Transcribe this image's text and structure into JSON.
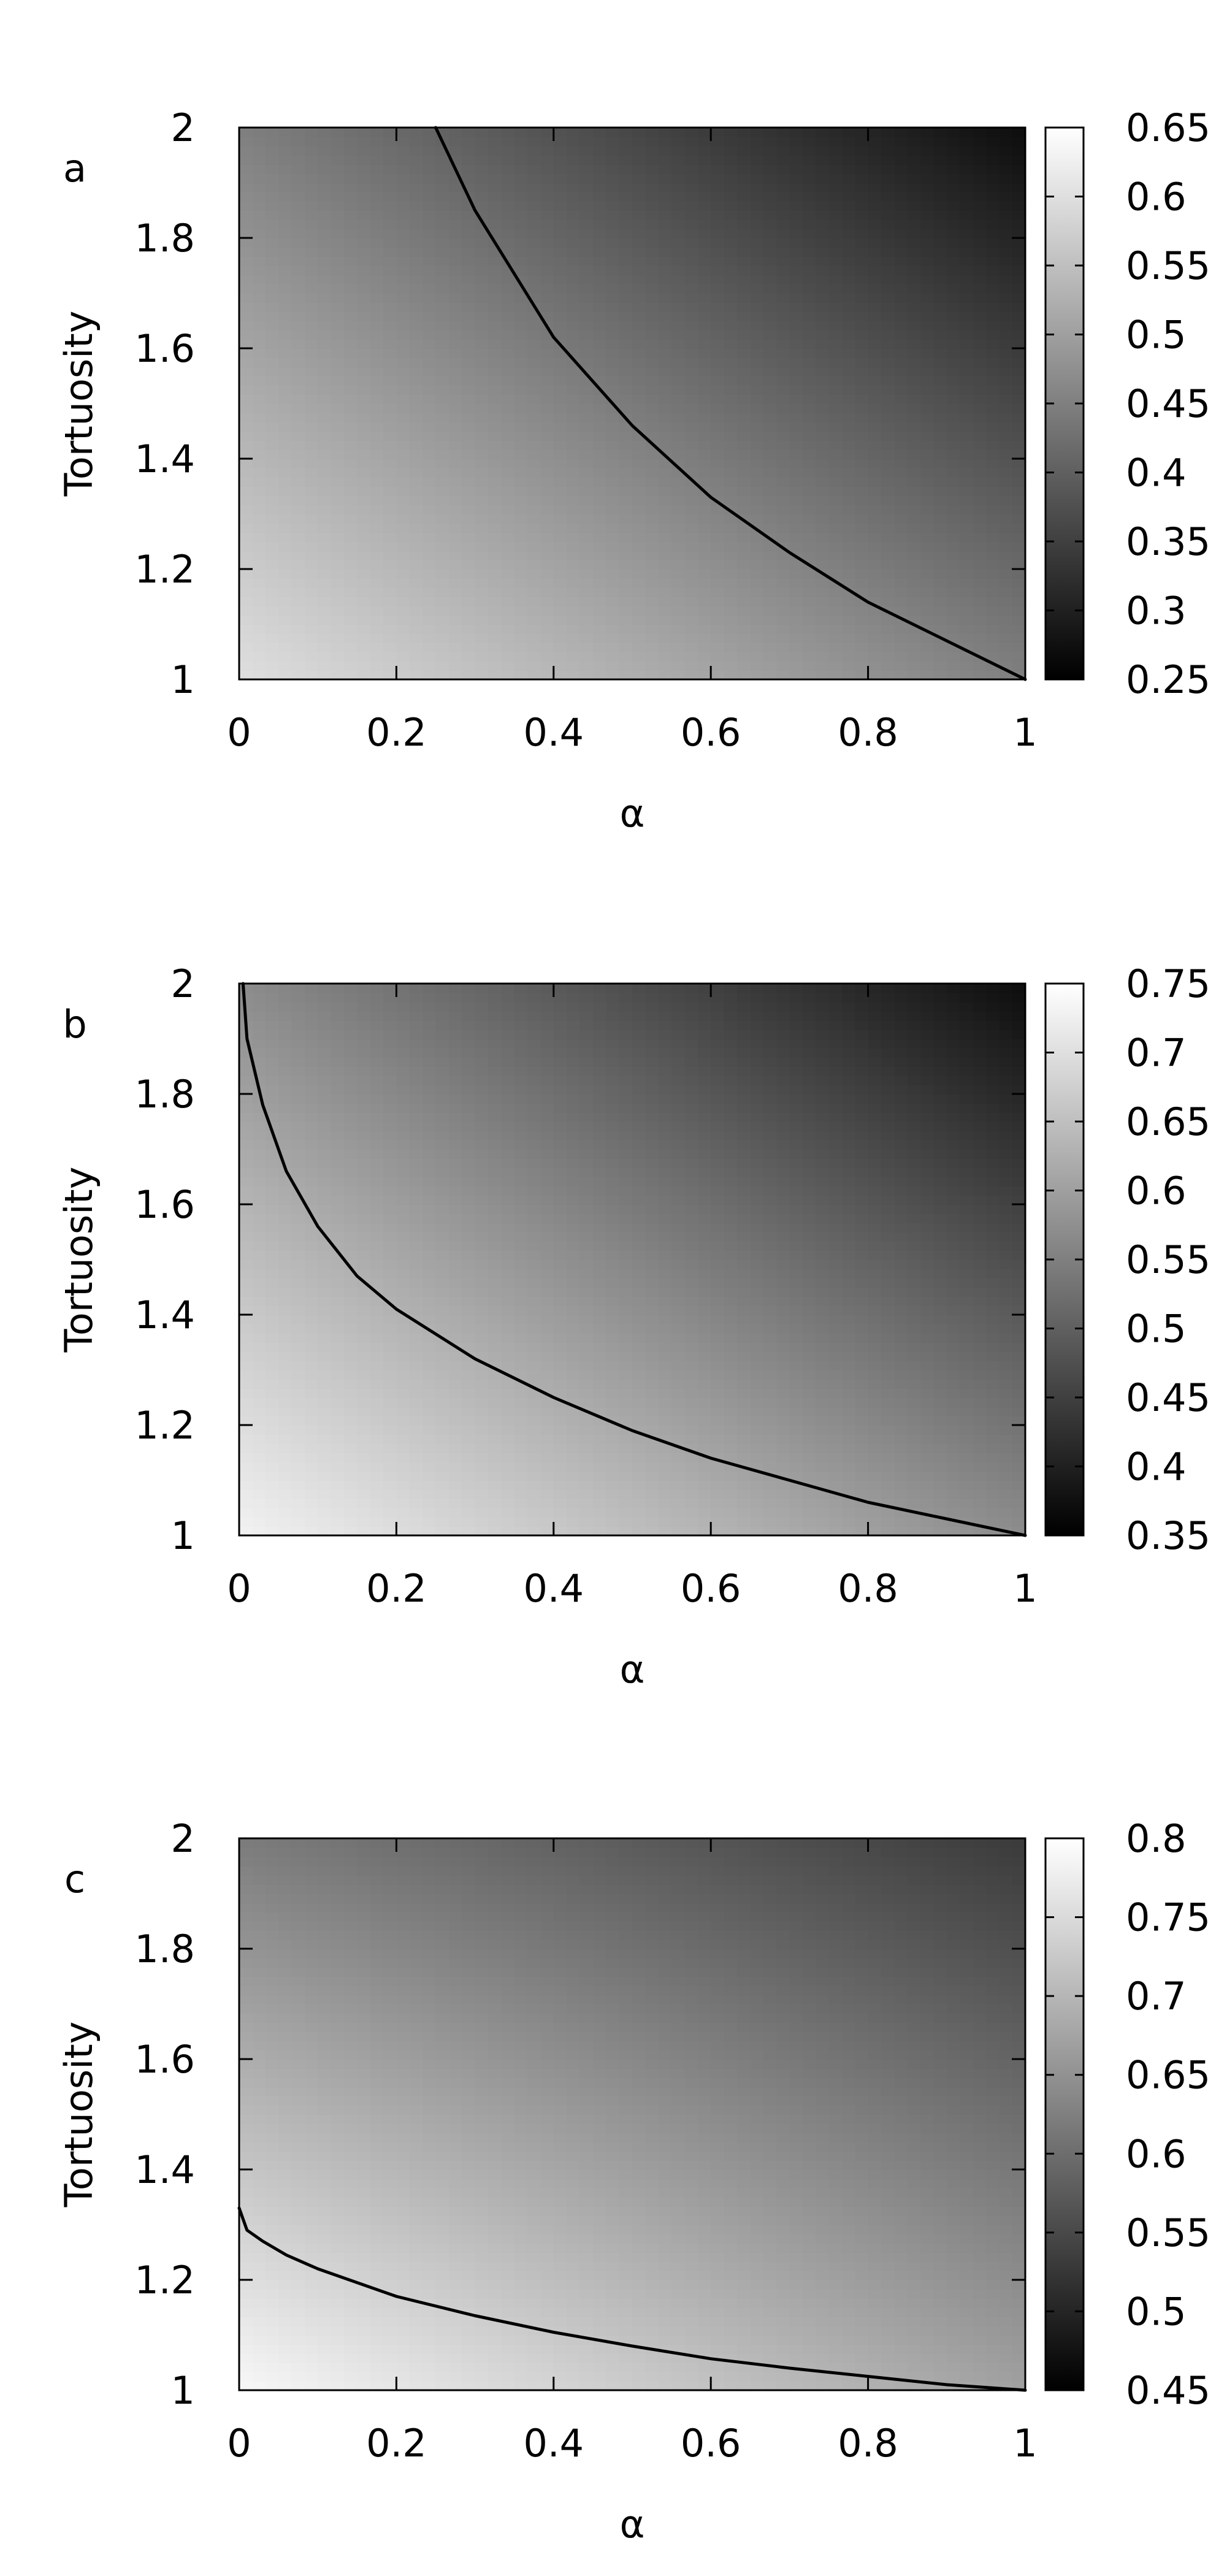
{
  "chart_data": [
    {
      "type": "heatmap",
      "panel_label": "a",
      "xlabel": "α",
      "ylabel": "Tortuosity",
      "xlim": [
        0,
        1
      ],
      "ylim": [
        1,
        2
      ],
      "x_ticks": [
        "0",
        "0.2",
        "0.4",
        "0.6",
        "0.8",
        "1"
      ],
      "y_ticks": [
        "1",
        "1.2",
        "1.4",
        "1.6",
        "1.8",
        "2"
      ],
      "colorbar": {
        "range": [
          0.25,
          0.65
        ],
        "ticks": [
          "0.25",
          "0.3",
          "0.35",
          "0.4",
          "0.45",
          "0.5",
          "0.55",
          "0.6",
          "0.65"
        ],
        "colormap": "grayscale"
      },
      "field_corners": {
        "x0_y1": 0.6,
        "x1_y1": 0.45,
        "x0_y2": 0.45,
        "x1_y2": 0.27
      },
      "contour": {
        "color": "#000000",
        "points": [
          [
            0.25,
            2.0
          ],
          [
            0.3,
            1.85
          ],
          [
            0.4,
            1.62
          ],
          [
            0.5,
            1.46
          ],
          [
            0.6,
            1.33
          ],
          [
            0.7,
            1.23
          ],
          [
            0.8,
            1.14
          ],
          [
            0.9,
            1.07
          ],
          [
            1.0,
            1.0
          ]
        ]
      },
      "grid": false
    },
    {
      "type": "heatmap",
      "panel_label": "b",
      "xlabel": "α",
      "ylabel": "Tortuosity",
      "xlim": [
        0,
        1
      ],
      "ylim": [
        1,
        2
      ],
      "x_ticks": [
        "0",
        "0.2",
        "0.4",
        "0.6",
        "0.8",
        "1"
      ],
      "y_ticks": [
        "1",
        "1.2",
        "1.4",
        "1.6",
        "1.8",
        "2"
      ],
      "colorbar": {
        "range": [
          0.35,
          0.75
        ],
        "ticks": [
          "0.35",
          "0.4",
          "0.45",
          "0.5",
          "0.55",
          "0.6",
          "0.65",
          "0.7",
          "0.75"
        ],
        "colormap": "grayscale"
      },
      "field_corners": {
        "x0_y1": 0.73,
        "x1_y1": 0.57,
        "x0_y2": 0.57,
        "x1_y2": 0.37
      },
      "contour": {
        "color": "#000000",
        "points": [
          [
            0.005,
            2.0
          ],
          [
            0.01,
            1.9
          ],
          [
            0.03,
            1.78
          ],
          [
            0.06,
            1.66
          ],
          [
            0.1,
            1.56
          ],
          [
            0.15,
            1.47
          ],
          [
            0.2,
            1.41
          ],
          [
            0.3,
            1.32
          ],
          [
            0.4,
            1.25
          ],
          [
            0.5,
            1.19
          ],
          [
            0.6,
            1.14
          ],
          [
            0.7,
            1.1
          ],
          [
            0.8,
            1.06
          ],
          [
            0.9,
            1.03
          ],
          [
            1.0,
            1.0
          ]
        ]
      },
      "grid": false
    },
    {
      "type": "heatmap",
      "panel_label": "c",
      "xlabel": "α",
      "ylabel": "Tortuosity",
      "xlim": [
        0,
        1
      ],
      "ylim": [
        1,
        2
      ],
      "x_ticks": [
        "0",
        "0.2",
        "0.4",
        "0.6",
        "0.8",
        "1"
      ],
      "y_ticks": [
        "1",
        "1.2",
        "1.4",
        "1.6",
        "1.8",
        "2"
      ],
      "colorbar": {
        "range": [
          0.45,
          0.8
        ],
        "ticks": [
          "0.45",
          "0.5",
          "0.55",
          "0.6",
          "0.65",
          "0.7",
          "0.75",
          "0.8"
        ],
        "colormap": "grayscale"
      },
      "field_corners": {
        "x0_y1": 0.79,
        "x1_y1": 0.67,
        "x0_y2": 0.62,
        "x1_y2": 0.53
      },
      "contour": {
        "color": "#000000",
        "points": [
          [
            0.0,
            1.33
          ],
          [
            0.01,
            1.29
          ],
          [
            0.03,
            1.27
          ],
          [
            0.06,
            1.245
          ],
          [
            0.1,
            1.22
          ],
          [
            0.2,
            1.17
          ],
          [
            0.3,
            1.135
          ],
          [
            0.4,
            1.105
          ],
          [
            0.5,
            1.08
          ],
          [
            0.6,
            1.057
          ],
          [
            0.7,
            1.04
          ],
          [
            0.8,
            1.025
          ],
          [
            0.9,
            1.01
          ],
          [
            1.0,
            1.0
          ]
        ]
      },
      "grid": false
    }
  ]
}
